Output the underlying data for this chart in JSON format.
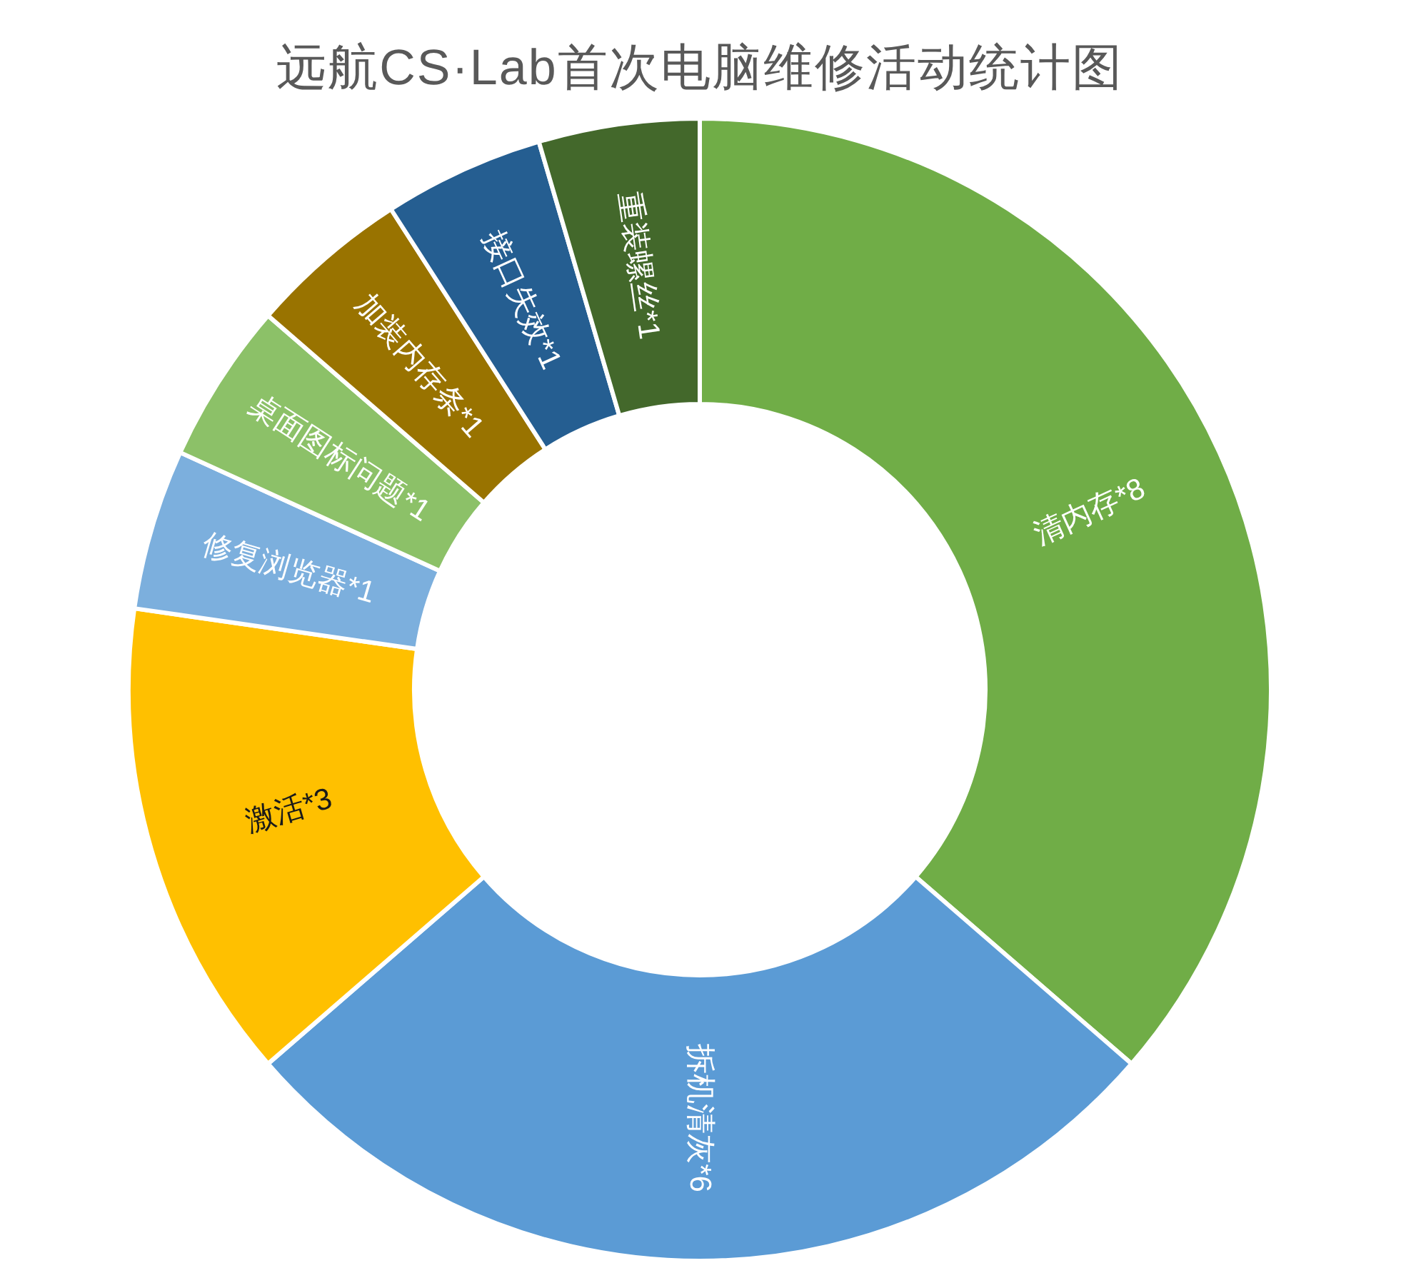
{
  "chart_data": {
    "type": "donut",
    "title": "远航CS·Lab首次电脑维修活动统计图",
    "categories": [
      "清内存*8",
      "拆机清灰*6",
      "激活*3",
      "修复浏览器*1",
      "桌面图标问题*1",
      "加装内存条*1",
      "接口失效*1",
      "重装螺丝*1"
    ],
    "values": [
      8,
      6,
      3,
      1,
      1,
      1,
      1,
      1
    ],
    "colors": [
      "#70ad47",
      "#5b9bd5",
      "#ffc000",
      "#7cafdd",
      "#8cc168",
      "#997300",
      "#255e91",
      "#43682b"
    ]
  }
}
